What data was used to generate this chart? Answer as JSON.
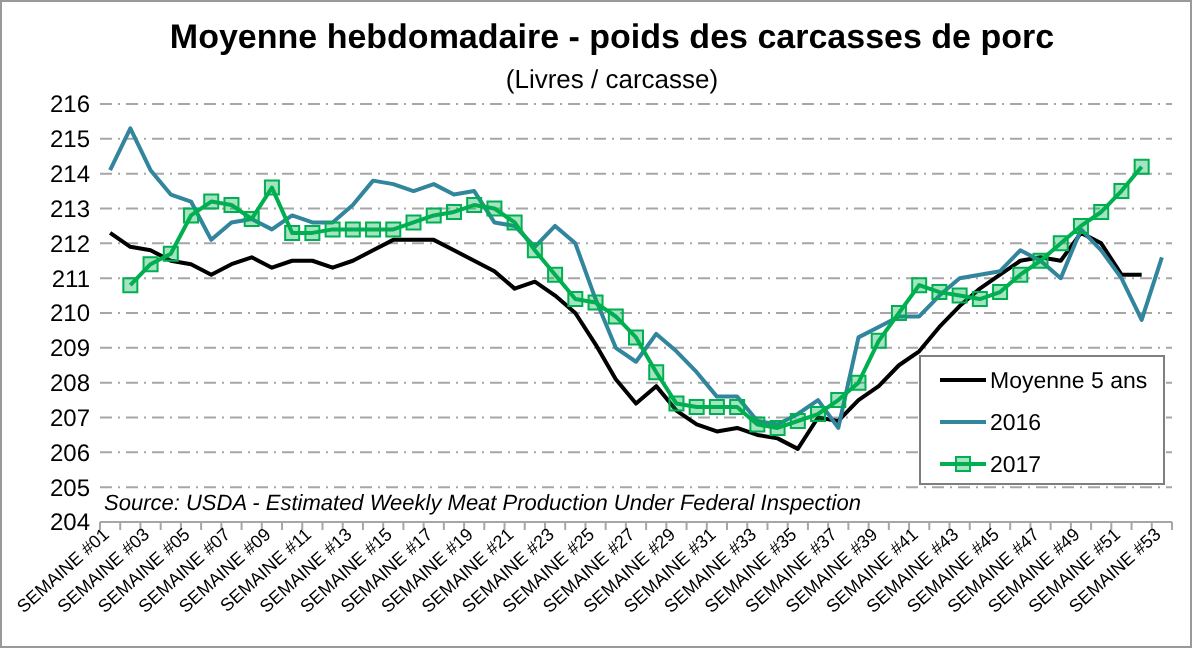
{
  "chart_data": {
    "type": "line",
    "title": "Moyenne hebdomadaire - poids des carcasses de porc",
    "subtitle": "(Livres / carcasse)",
    "categories": [
      "SEMAINE #01",
      null,
      "SEMAINE #03",
      null,
      "SEMAINE #05",
      null,
      "SEMAINE #07",
      null,
      "SEMAINE #09",
      null,
      "SEMAINE #11",
      null,
      "SEMAINE #13",
      null,
      "SEMAINE #15",
      null,
      "SEMAINE #17",
      null,
      "SEMAINE #19",
      null,
      "SEMAINE #21",
      null,
      "SEMAINE #23",
      null,
      "SEMAINE #25",
      null,
      "SEMAINE #27",
      null,
      "SEMAINE #29",
      null,
      "SEMAINE #31",
      null,
      "SEMAINE #33",
      null,
      "SEMAINE #35",
      null,
      "SEMAINE #37",
      null,
      "SEMAINE #39",
      null,
      "SEMAINE #41",
      null,
      "SEMAINE #43",
      null,
      "SEMAINE #45",
      null,
      "SEMAINE #47",
      null,
      "SEMAINE #49",
      null,
      "SEMAINE #51",
      null,
      "SEMAINE #53"
    ],
    "series": [
      {
        "name": "Moyenne 5 ans",
        "color": "#000000",
        "marker": "none",
        "values": [
          212.3,
          211.9,
          211.8,
          211.5,
          211.4,
          211.1,
          211.4,
          211.6,
          211.3,
          211.5,
          211.5,
          211.3,
          211.5,
          211.8,
          212.1,
          212.1,
          212.1,
          211.8,
          211.5,
          211.2,
          210.7,
          210.9,
          210.5,
          210.0,
          209.1,
          208.1,
          207.4,
          207.9,
          207.2,
          206.8,
          206.6,
          206.7,
          206.5,
          206.4,
          206.1,
          207.0,
          206.9,
          207.5,
          207.9,
          208.5,
          208.9,
          209.6,
          210.2,
          210.7,
          211.1,
          211.5,
          211.6,
          211.5,
          212.3,
          212.0,
          211.1,
          211.1,
          null
        ]
      },
      {
        "name": "2016",
        "color": "#31859c",
        "marker": "none",
        "values": [
          214.1,
          215.3,
          214.1,
          213.4,
          213.2,
          212.1,
          212.6,
          212.7,
          212.4,
          212.8,
          212.6,
          212.6,
          213.1,
          213.8,
          213.7,
          213.5,
          213.7,
          213.4,
          213.5,
          212.6,
          212.5,
          211.9,
          212.5,
          212.0,
          210.4,
          209.0,
          208.6,
          209.4,
          208.9,
          208.3,
          207.6,
          207.6,
          206.9,
          206.8,
          207.1,
          207.5,
          206.7,
          209.3,
          209.6,
          209.9,
          209.9,
          210.5,
          211.0,
          211.1,
          211.2,
          211.8,
          211.5,
          211.0,
          212.4,
          211.8,
          211.0,
          209.8,
          211.6
        ]
      },
      {
        "name": "2017",
        "color": "#00b050",
        "marker": "square",
        "values": [
          null,
          210.8,
          211.4,
          211.7,
          212.8,
          213.2,
          213.1,
          212.7,
          213.6,
          212.3,
          212.3,
          212.4,
          212.4,
          212.4,
          212.4,
          212.6,
          212.8,
          212.9,
          213.1,
          213.0,
          212.6,
          211.8,
          211.1,
          210.4,
          210.3,
          209.9,
          209.3,
          208.3,
          207.4,
          207.3,
          207.3,
          207.3,
          206.8,
          206.7,
          206.9,
          207.1,
          207.5,
          208.0,
          209.2,
          210.0,
          210.8,
          210.6,
          210.5,
          210.4,
          210.6,
          211.1,
          211.5,
          212.0,
          212.5,
          212.9,
          213.5,
          214.2,
          null
        ]
      }
    ],
    "ylim": [
      204,
      216
    ],
    "yticks": [
      204,
      205,
      206,
      207,
      208,
      209,
      210,
      211,
      212,
      213,
      214,
      215,
      216
    ],
    "grid": "y",
    "legend": "bottom right",
    "annotations": [
      "Source: USDA - Estimated Weekly Meat Production Under Federal Inspection"
    ]
  }
}
